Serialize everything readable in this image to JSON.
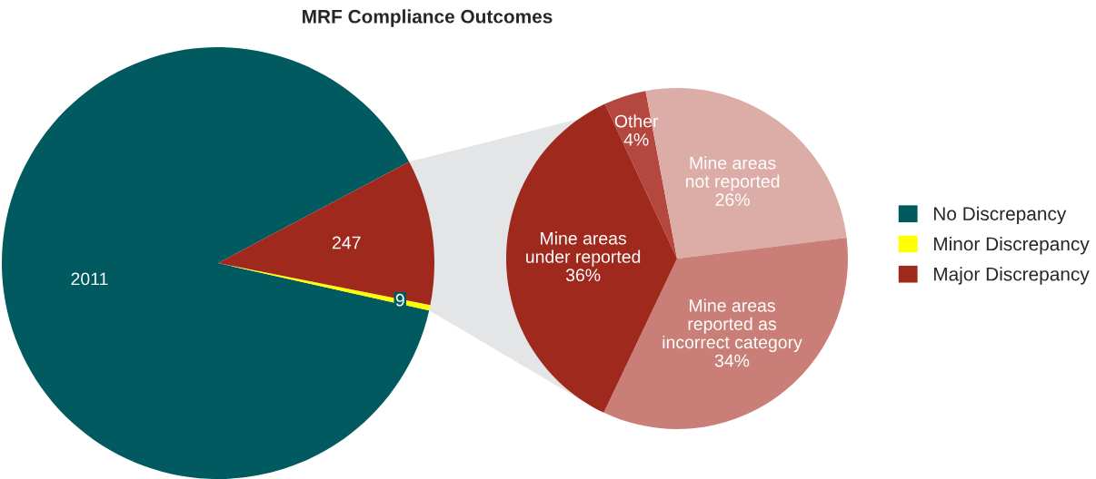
{
  "chart_data": [
    {
      "type": "pie",
      "title": "MRF Compliance Outcomes",
      "categories": [
        "No Discrepancy",
        "Minor Discrepancy",
        "Major Discrepancy"
      ],
      "values": [
        2011,
        9,
        247
      ],
      "colors": [
        "#005a5f",
        "#ffff00",
        "#a0291e"
      ],
      "data_labels": true,
      "legend": "right"
    },
    {
      "type": "pie",
      "categories": [
        "Other",
        "Mine areas\nnot reported",
        "Mine areas\nreported as\nincorrect category",
        "Mine areas\nunder reported"
      ],
      "values": [
        4,
        26,
        34,
        36
      ],
      "colors": [
        "#b5483e",
        "#dcaca7",
        "#c97f77",
        "#a0291e"
      ],
      "value_labels": [
        "4%",
        "26%",
        "34%",
        "36%"
      ]
    }
  ]
}
